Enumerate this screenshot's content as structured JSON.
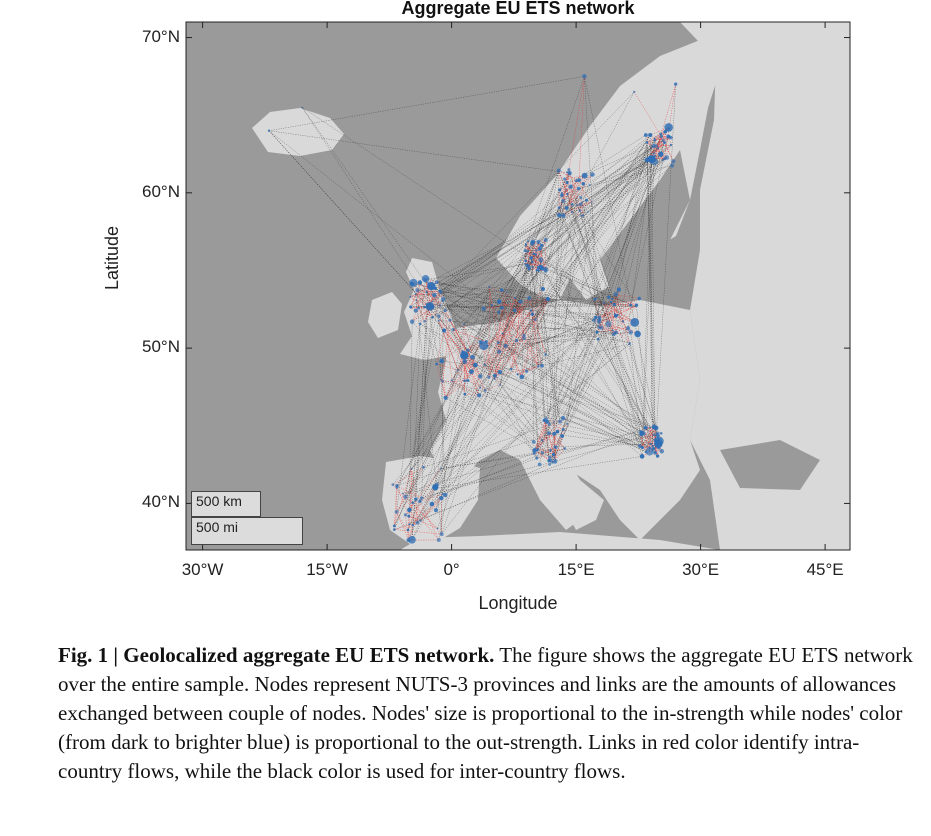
{
  "chart_data": {
    "type": "map-network",
    "title": "Aggregate EU ETS network",
    "xlabel": "Longitude",
    "ylabel": "Latitude",
    "xlim": [
      -32,
      48
    ],
    "ylim": [
      37,
      71
    ],
    "x_ticks": [
      "30°W",
      "15°W",
      "0°",
      "15°E",
      "30°E",
      "45°E"
    ],
    "x_tick_values": [
      -30,
      -15,
      0,
      15,
      30,
      45
    ],
    "y_ticks": [
      "70°N",
      "60°N",
      "50°N",
      "40°N"
    ],
    "y_tick_values": [
      70,
      60,
      50,
      40
    ],
    "scale_bar": [
      "500 km",
      "500 mi"
    ],
    "colors": {
      "sea": "#9a9a9a",
      "land": "#d9d9d9",
      "intra_country_link": "#e8312f",
      "inter_country_link": "#1a1a1a",
      "node": "#2f6fb5"
    }
  },
  "caption": {
    "lead": "Fig. 1 | Geolocalized aggregate EU ETS network.",
    "text": " The figure shows the aggregate EU ETS network over the entire sample. Nodes represent NUTS-3 provinces and links are the amounts of allowances exchanged between couple of nodes. Nodes' size is proportional to the in-strength while nodes' color (from dark to brighter blue) is proportional to the out-strength. Links in red color identify intra-country flows, while the black color is used for inter-country flows."
  }
}
